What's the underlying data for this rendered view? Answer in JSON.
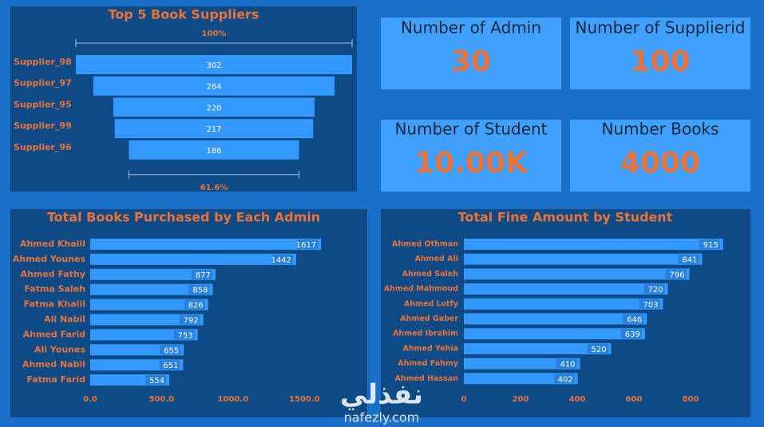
{
  "chart_data": [
    {
      "type": "funnel",
      "title": "Top 5 Book Suppliers",
      "categories": [
        "Supplier_98",
        "Supplier_97",
        "Supplier_95",
        "Supplier_99",
        "Supplier_96"
      ],
      "values": [
        302,
        264,
        220,
        217,
        186
      ],
      "color": "#3399ff",
      "annotations": [
        "100%",
        "61.6%"
      ]
    },
    {
      "type": "hbar",
      "title": "Total Books Purchased by Each Admin",
      "categories": [
        "Ahmed Khalil",
        "Ahmed Younes",
        "Ahmed Fathy",
        "Fatma Saleh",
        "Fatma Khalil",
        "Ali Nabil",
        "Ahmed Farid",
        "Ali Younes",
        "Ahmed Nabil",
        "Fatma Farid"
      ],
      "values": [
        1617,
        1442,
        877,
        858,
        826,
        792,
        753,
        655,
        651,
        554
      ],
      "color": "#3399ff",
      "xlim": [
        0,
        1800
      ],
      "xticks": [
        {
          "value": 0,
          "label": "0.0"
        },
        {
          "value": 500,
          "label": "500.0"
        },
        {
          "value": 1000,
          "label": "1000.0"
        },
        {
          "value": 1500,
          "label": "1500.0"
        }
      ]
    },
    {
      "type": "hbar",
      "title": "Total Fine Amount by Student",
      "categories": [
        "Ahmed Othman",
        "Ahmed Ali",
        "Ahmed Saleh",
        "Ahmed Mahmoud",
        "Ahmed Lotfy",
        "Ahmed Gaber",
        "Ahmed Ibrahim",
        "Ahmed Yehia",
        "Ahmed Fahmy",
        "Ahmed Hassan"
      ],
      "values": [
        915,
        841,
        796,
        720,
        703,
        646,
        639,
        520,
        410,
        402
      ],
      "color": "#3399ff",
      "xlim": [
        0,
        1000
      ],
      "xticks": [
        0,
        200,
        400,
        600,
        800
      ]
    }
  ],
  "cards": [
    {
      "title": "Number of Admin",
      "value": "30"
    },
    {
      "title": "Number of Supplierid",
      "value": "100"
    },
    {
      "title": "Number of Student",
      "value": "10.00K"
    },
    {
      "title": "Number Books",
      "value": "4000"
    }
  ],
  "watermark": {
    "arabic": "نفذلي",
    "latin": "nafezly.com"
  }
}
